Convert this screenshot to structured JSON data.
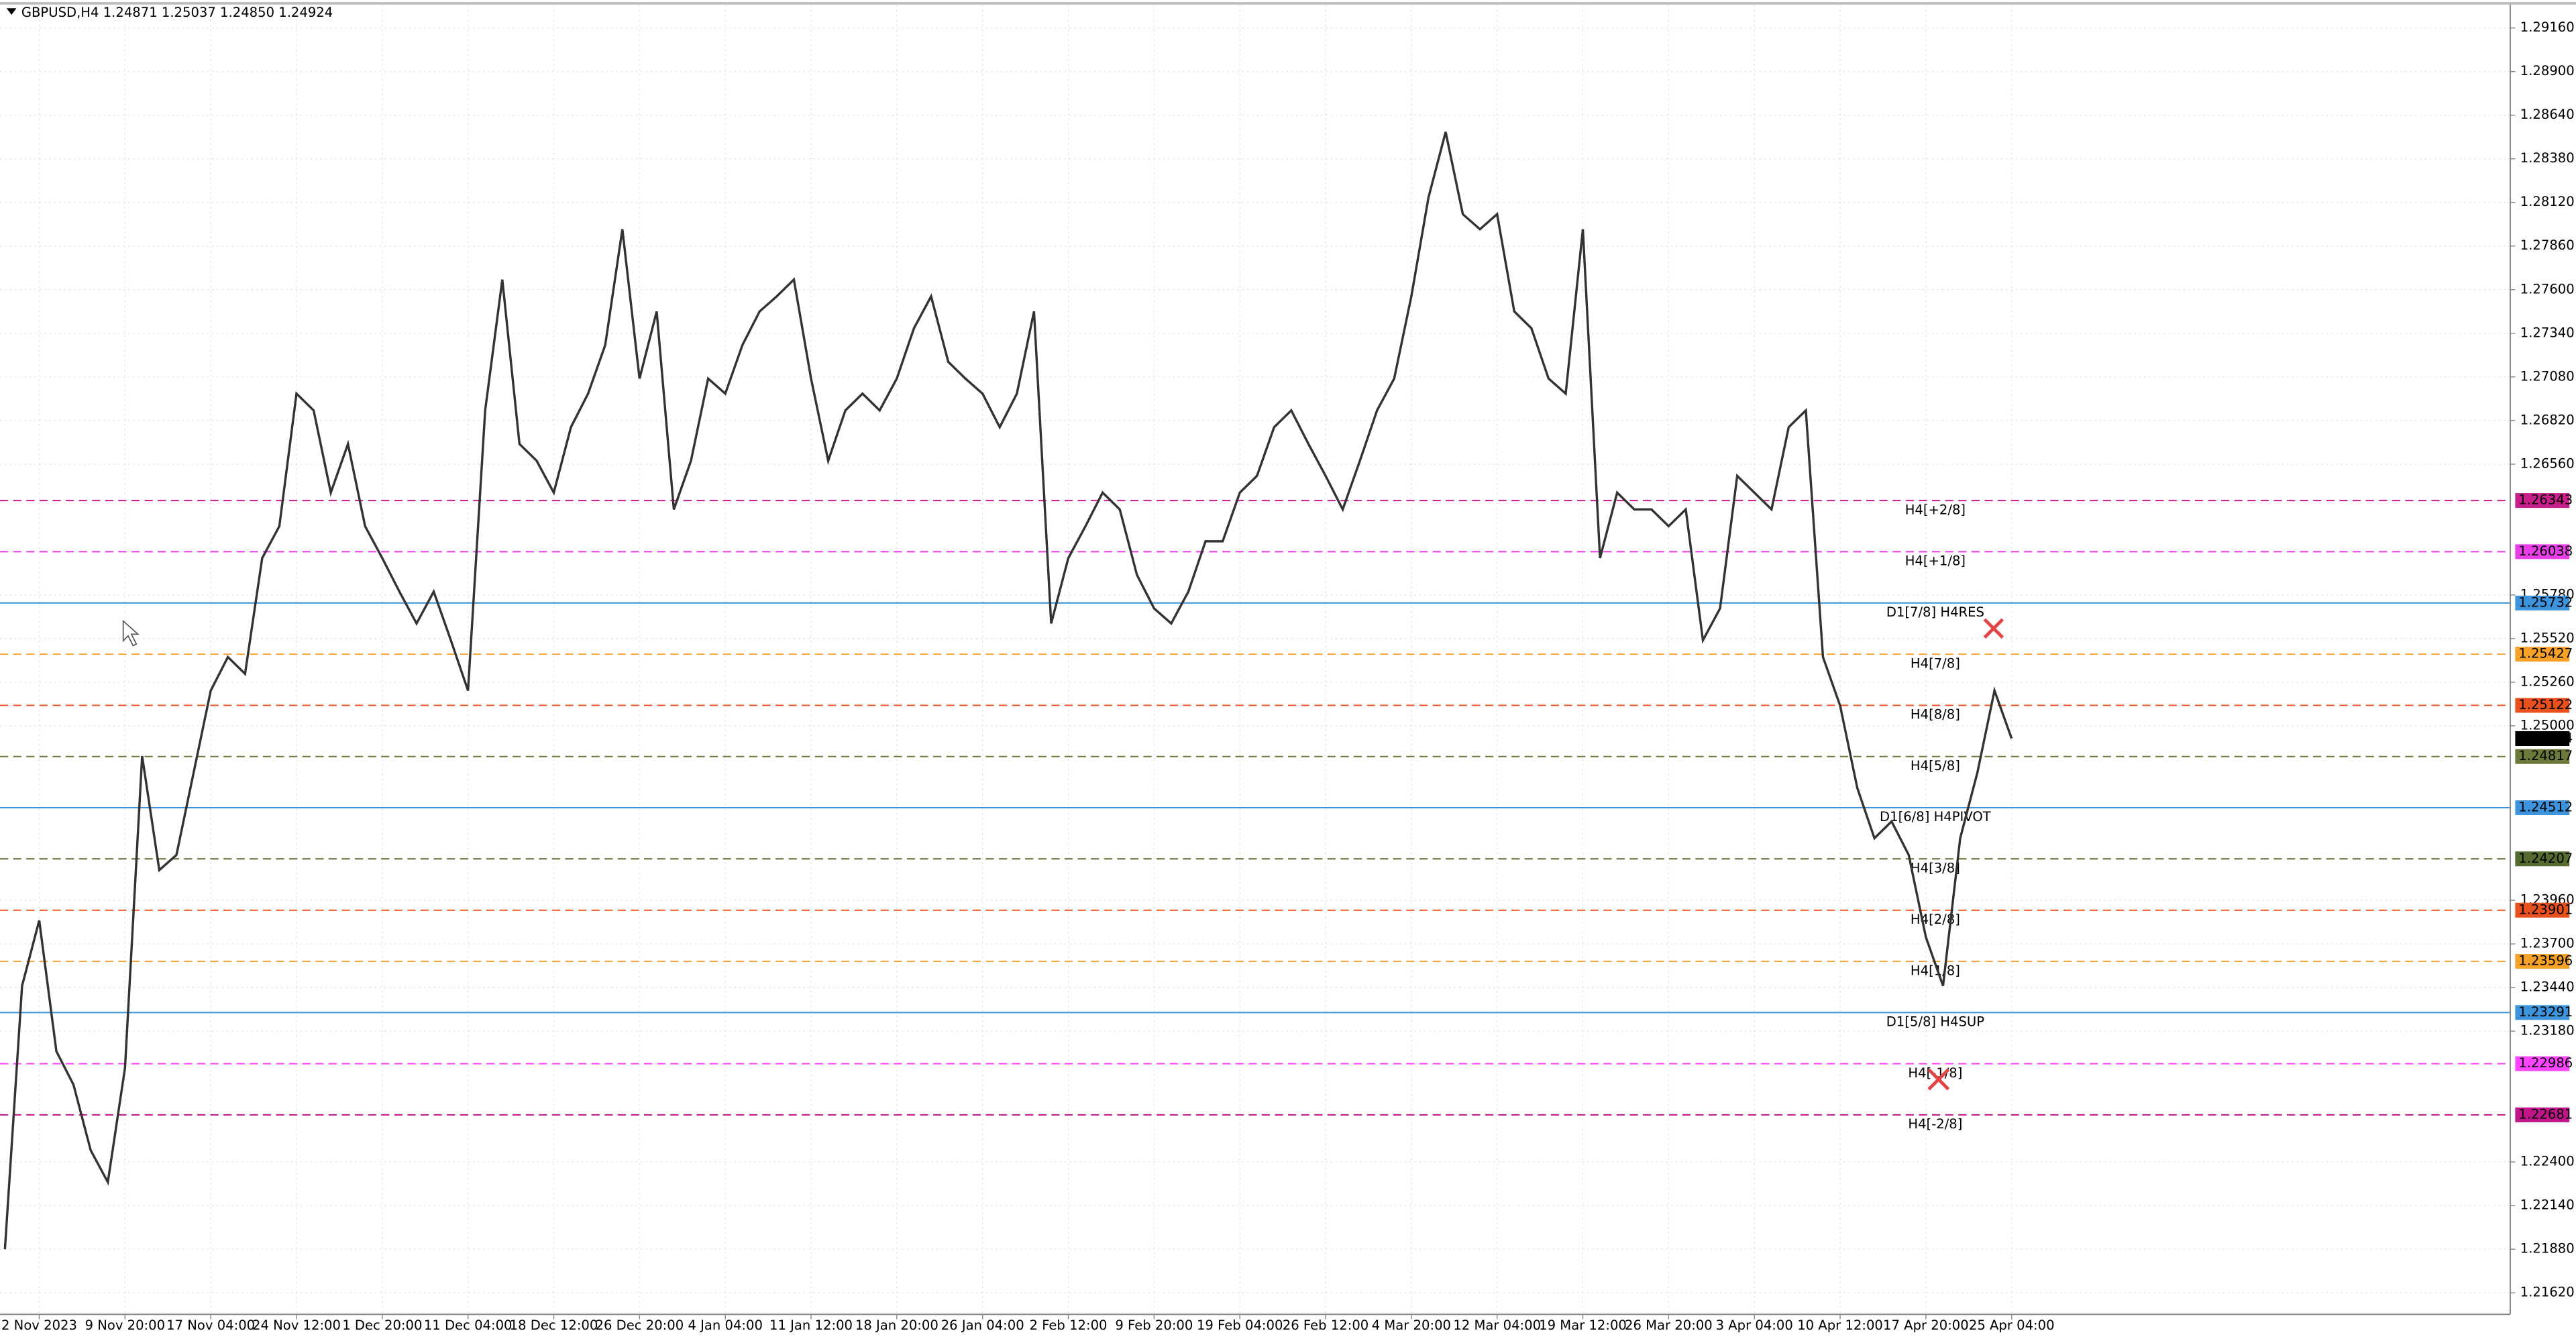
{
  "chart_data": {
    "type": "line",
    "title": "GBPUSD,H4  1.24871 1.25037 1.24850 1.24924",
    "color": "#333333",
    "grid": true,
    "ylim": [
      1.21492,
      1.29297
    ],
    "yticks": [
      {
        "value": 1.2916,
        "label": "1.29160"
      },
      {
        "value": 1.289,
        "label": "1.28900"
      },
      {
        "value": 1.2864,
        "label": "1.28640"
      },
      {
        "value": 1.2838,
        "label": "1.28380"
      },
      {
        "value": 1.2812,
        "label": "1.28120"
      },
      {
        "value": 1.2786,
        "label": "1.27860"
      },
      {
        "value": 1.276,
        "label": "1.27600"
      },
      {
        "value": 1.2734,
        "label": "1.27340"
      },
      {
        "value": 1.2708,
        "label": "1.27080"
      },
      {
        "value": 1.2682,
        "label": "1.26820"
      },
      {
        "value": 1.2656,
        "label": "1.26560"
      },
      {
        "value": 1.2578,
        "label": "1.25780"
      },
      {
        "value": 1.2552,
        "label": "1.25520"
      },
      {
        "value": 1.2526,
        "label": "1.25260"
      },
      {
        "value": 1.25,
        "label": "1.25000"
      },
      {
        "value": 1.2396,
        "label": "1.23960"
      },
      {
        "value": 1.237,
        "label": "1.23700"
      },
      {
        "value": 1.2344,
        "label": "1.23440"
      },
      {
        "value": 1.2318,
        "label": "1.23180"
      },
      {
        "value": 1.224,
        "label": "1.22400"
      },
      {
        "value": 1.2214,
        "label": "1.22140"
      },
      {
        "value": 1.2188,
        "label": "1.21880"
      },
      {
        "value": 1.2162,
        "label": "1.21620"
      }
    ],
    "categories": [
      null,
      null,
      "2 Nov 2023",
      null,
      null,
      null,
      null,
      "9 Nov 20:00",
      null,
      null,
      null,
      null,
      "17 Nov 04:00",
      null,
      null,
      null,
      null,
      "24 Nov 12:00",
      null,
      null,
      null,
      null,
      "1 Dec 20:00",
      null,
      null,
      null,
      null,
      "11 Dec 04:00",
      null,
      null,
      null,
      null,
      "18 Dec 12:00",
      null,
      null,
      null,
      null,
      "26 Dec 20:00",
      null,
      null,
      null,
      null,
      "4 Jan 04:00",
      null,
      null,
      null,
      null,
      "11 Jan 12:00",
      null,
      null,
      null,
      null,
      "18 Jan 20:00",
      null,
      null,
      null,
      null,
      "26 Jan 04:00",
      null,
      null,
      null,
      null,
      "2 Feb 12:00",
      null,
      null,
      null,
      null,
      "9 Feb 20:00",
      null,
      null,
      null,
      null,
      "19 Feb 04:00",
      null,
      null,
      null,
      null,
      "26 Feb 12:00",
      null,
      null,
      null,
      null,
      "4 Mar 20:00",
      null,
      null,
      null,
      null,
      "12 Mar 04:00",
      null,
      null,
      null,
      null,
      "19 Mar 12:00",
      null,
      null,
      null,
      null,
      "26 Mar 20:00",
      null,
      null,
      null,
      null,
      "3 Apr 04:00",
      null,
      null,
      null,
      null,
      "10 Apr 12:00",
      null,
      null,
      null,
      null,
      "17 Apr 20:00",
      null,
      null,
      null,
      null,
      "25 Apr 04:00"
    ],
    "values": [
      1.2188,
      1.2345,
      1.2384,
      1.2306,
      1.2286,
      1.2247,
      1.2228,
      1.2296,
      1.2482,
      1.2414,
      1.2423,
      1.2472,
      1.2521,
      1.2541,
      1.2531,
      1.26,
      1.2619,
      1.2698,
      1.2688,
      1.2639,
      1.2668,
      1.2619,
      1.26,
      1.258,
      1.2561,
      1.258,
      1.2551,
      1.2521,
      1.2688,
      1.2766,
      1.2668,
      1.2658,
      1.2639,
      1.2678,
      1.2698,
      1.2727,
      1.2796,
      1.2707,
      1.2747,
      1.2629,
      1.2658,
      1.2707,
      1.2698,
      1.2727,
      1.2747,
      1.2756,
      1.2766,
      1.2707,
      1.2658,
      1.2688,
      1.2698,
      1.2688,
      1.2707,
      1.2737,
      1.2756,
      1.2717,
      1.2707,
      1.2698,
      1.2678,
      1.2698,
      1.2747,
      1.2561,
      1.26,
      1.2619,
      1.2639,
      1.2629,
      1.259,
      1.257,
      1.2561,
      1.258,
      1.261,
      1.261,
      1.2639,
      1.2649,
      1.2678,
      1.2688,
      1.2668,
      1.2649,
      1.2629,
      1.2658,
      1.2688,
      1.2707,
      1.2756,
      1.2815,
      1.2854,
      1.2805,
      1.2796,
      1.2805,
      1.2747,
      1.2737,
      1.2707,
      1.2698,
      1.2796,
      1.26,
      1.2639,
      1.2629,
      1.2629,
      1.2619,
      1.2629,
      1.2551,
      1.257,
      1.2649,
      1.2639,
      1.2629,
      1.2678,
      1.2688,
      1.2541,
      1.2512,
      1.2463,
      1.2433,
      1.2443,
      1.2423,
      1.2374,
      1.2345,
      1.2433,
      1.2472,
      1.2521,
      1.24924
    ],
    "levels": [
      {
        "name": "H4[+2/8]",
        "value": 1.26343,
        "color": "#c8208a",
        "dashed": true
      },
      {
        "name": "H4[+1/8]",
        "value": 1.26038,
        "color": "#e83ee8",
        "dashed": true
      },
      {
        "name": "D1[7/8] H4RES",
        "value": 1.25732,
        "color": "#3d94dc",
        "dashed": false
      },
      {
        "name": "H4[7/8]",
        "value": 1.25427,
        "color": "#f5a12a",
        "dashed": true
      },
      {
        "name": "H4[8/8]",
        "value": 1.25122,
        "color": "#e8501e",
        "dashed": true
      },
      {
        "name": "H4[5/8]",
        "value": 1.24817,
        "color": "#6b7a3a",
        "dashed": true
      },
      {
        "name": "D1[6/8] H4PIVOT",
        "value": 1.24512,
        "color": "#3d94dc",
        "dashed": false
      },
      {
        "name": "H4[3/8]",
        "value": 1.24207,
        "color": "#556b2f",
        "dashed": true
      },
      {
        "name": "H4[2/8]",
        "value": 1.23901,
        "color": "#e8501e",
        "dashed": true
      },
      {
        "name": "H4[1/8]",
        "value": 1.23596,
        "color": "#f5a12a",
        "dashed": true
      },
      {
        "name": "D1[5/8] H4SUP",
        "value": 1.23291,
        "color": "#3d94dc",
        "dashed": false
      },
      {
        "name": "H4[-1/8]",
        "value": 1.22986,
        "color": "#ff44ff",
        "dashed": true
      },
      {
        "name": "H4[-2/8]",
        "value": 1.22681,
        "color": "#c0168a",
        "dashed": true
      }
    ]
  }
}
